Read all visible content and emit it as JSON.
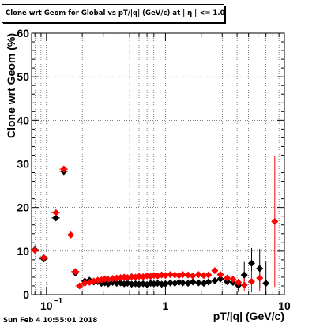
{
  "title": "Clone wrt Geom for Global vs pT/|q| (GeV/c) at |  η | <= 1.0",
  "footer": "Sun Feb  4 10:55:01 2018",
  "chart_data": {
    "type": "scatter",
    "title": "Clone wrt Geom for Global vs pT/|q| (GeV/c) at |  η | <= 1.0",
    "xlabel": "pT/|q| (GeV/c)",
    "ylabel": "Clone wrt Geom (%)",
    "xscale": "log",
    "xlim": [
      0.075,
      10
    ],
    "ylim": [
      0,
      60
    ],
    "x_ticklabels": [
      {
        "value": 0.1,
        "label": "10",
        "sup": "−1"
      },
      {
        "value": 1,
        "label": "1",
        "sup": ""
      },
      {
        "value": 10,
        "label": "10",
        "sup": ""
      }
    ],
    "y_ticks": [
      0,
      10,
      20,
      30,
      40,
      50,
      60
    ],
    "grid": true,
    "series": [
      {
        "marker": "diamond",
        "color": "#000000",
        "points": [
          [
            0.08,
            10.3
          ],
          [
            0.095,
            8.2
          ],
          [
            0.12,
            17.6
          ],
          [
            0.14,
            28.3
          ],
          [
            0.175,
            5.0
          ],
          [
            0.21,
            3.1
          ],
          [
            0.23,
            3.3
          ],
          [
            0.25,
            2.9
          ],
          [
            0.27,
            3.0
          ],
          [
            0.29,
            2.6
          ],
          [
            0.31,
            2.7
          ],
          [
            0.33,
            2.5
          ],
          [
            0.36,
            2.8
          ],
          [
            0.39,
            2.6
          ],
          [
            0.42,
            2.7
          ],
          [
            0.45,
            2.5
          ],
          [
            0.48,
            2.6
          ],
          [
            0.52,
            2.4
          ],
          [
            0.56,
            2.5
          ],
          [
            0.6,
            2.4
          ],
          [
            0.65,
            2.5
          ],
          [
            0.7,
            2.3
          ],
          [
            0.75,
            2.6
          ],
          [
            0.8,
            2.5
          ],
          [
            0.86,
            2.6
          ],
          [
            0.93,
            2.4
          ],
          [
            1.0,
            2.5
          ],
          [
            1.1,
            2.7
          ],
          [
            1.2,
            2.6
          ],
          [
            1.3,
            2.8
          ],
          [
            1.4,
            2.7
          ],
          [
            1.55,
            2.6
          ],
          [
            1.7,
            2.9
          ],
          [
            1.9,
            2.7
          ],
          [
            2.1,
            2.6
          ],
          [
            2.3,
            2.9
          ],
          [
            2.6,
            3.2
          ],
          [
            2.9,
            3.6
          ],
          [
            3.3,
            3.0
          ],
          [
            3.7,
            2.8
          ],
          [
            4.1,
            2.1
          ],
          [
            4.6,
            4.5
          ],
          [
            5.3,
            7.2
          ],
          [
            6.2,
            6.0
          ],
          [
            7.0,
            2.6
          ]
        ],
        "errors": [
          [
            0.08,
            1.0
          ],
          [
            0.095,
            0.5
          ],
          [
            0.12,
            0.7
          ],
          [
            0.14,
            1.0
          ],
          [
            0.175,
            0.6
          ],
          [
            4.1,
            1.5
          ],
          [
            4.6,
            3.0
          ],
          [
            5.3,
            3.5
          ],
          [
            6.2,
            4.5
          ],
          [
            7.0,
            5.0
          ]
        ]
      },
      {
        "marker": "diamond",
        "color": "#ff0000",
        "points": [
          [
            0.08,
            10.2
          ],
          [
            0.095,
            8.5
          ],
          [
            0.12,
            18.8
          ],
          [
            0.14,
            28.8
          ],
          [
            0.16,
            13.7
          ],
          [
            0.175,
            5.3
          ],
          [
            0.19,
            2.0
          ],
          [
            0.21,
            2.6
          ],
          [
            0.23,
            2.8
          ],
          [
            0.25,
            3.1
          ],
          [
            0.27,
            3.3
          ],
          [
            0.29,
            3.4
          ],
          [
            0.31,
            3.6
          ],
          [
            0.33,
            3.5
          ],
          [
            0.36,
            3.7
          ],
          [
            0.39,
            3.8
          ],
          [
            0.42,
            3.9
          ],
          [
            0.45,
            4.0
          ],
          [
            0.48,
            3.9
          ],
          [
            0.52,
            4.1
          ],
          [
            0.56,
            4.0
          ],
          [
            0.6,
            4.2
          ],
          [
            0.65,
            4.1
          ],
          [
            0.7,
            4.3
          ],
          [
            0.75,
            4.2
          ],
          [
            0.8,
            4.4
          ],
          [
            0.86,
            4.3
          ],
          [
            0.93,
            4.5
          ],
          [
            1.0,
            4.4
          ],
          [
            1.1,
            4.6
          ],
          [
            1.2,
            4.5
          ],
          [
            1.3,
            4.4
          ],
          [
            1.4,
            4.6
          ],
          [
            1.55,
            4.5
          ],
          [
            1.7,
            4.3
          ],
          [
            1.9,
            4.6
          ],
          [
            2.1,
            4.4
          ],
          [
            2.3,
            4.5
          ],
          [
            2.6,
            5.5
          ],
          [
            2.9,
            4.6
          ],
          [
            3.3,
            3.8
          ],
          [
            3.7,
            3.5
          ],
          [
            4.1,
            2.8
          ],
          [
            4.6,
            2.2
          ],
          [
            5.3,
            3.0
          ],
          [
            6.2,
            3.8
          ],
          [
            8.3,
            16.8
          ]
        ],
        "errors": [
          [
            0.08,
            0.8
          ],
          [
            0.14,
            0.8
          ],
          [
            0.16,
            0.6
          ],
          [
            4.6,
            1.5
          ],
          [
            5.3,
            2.5
          ],
          [
            6.2,
            3.0
          ],
          [
            8.3,
            15.0
          ]
        ]
      }
    ]
  }
}
